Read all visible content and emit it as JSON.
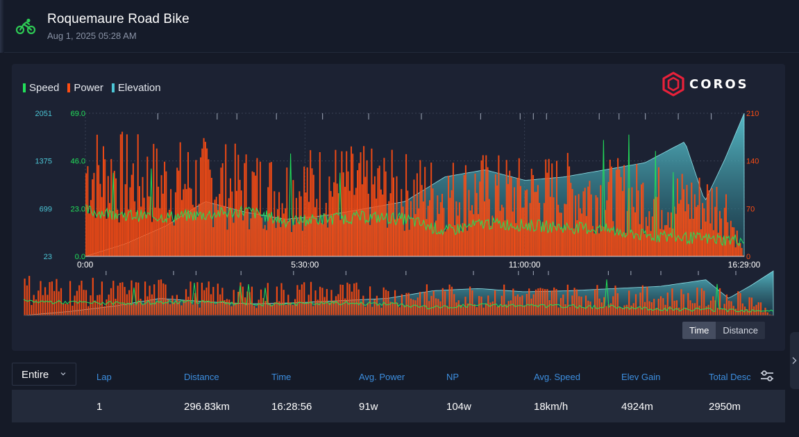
{
  "header": {
    "title": "Roquemaure Road Bike",
    "subtitle": "Aug 1, 2025 05:28 AM",
    "activity_icon": "road-bike-icon"
  },
  "chart": {
    "legend": [
      {
        "label": "Speed",
        "color": "#22e05a"
      },
      {
        "label": "Power",
        "color": "#ff4d12"
      },
      {
        "label": "Elevation",
        "color": "#4cc6d6"
      }
    ],
    "brand": "COROS",
    "elevation_ticks": [
      "2051",
      "1375",
      "699",
      "23"
    ],
    "speed_ticks": [
      "69.0",
      "46.0",
      "23.0",
      "0.0"
    ],
    "power_ticks": [
      "210",
      "140",
      "70",
      "0"
    ],
    "x_ticks": [
      "0:00",
      "5:30:00",
      "11:00:00",
      "16:29:00"
    ],
    "toggle": {
      "time": "Time",
      "distance": "Distance",
      "selected": "Time"
    }
  },
  "chart_data": {
    "type": "line",
    "x_unit": "elapsed time",
    "xlim": [
      "0:00",
      "16:29:00"
    ],
    "series": [
      {
        "name": "Speed",
        "axis": "left-inner",
        "ylim": [
          0,
          69
        ],
        "color": "#22e05a",
        "x": [
          "0:00",
          "1:00:00",
          "2:00:00",
          "3:00:00",
          "4:00:00",
          "5:00:00",
          "6:00:00",
          "7:00:00",
          "8:00:00",
          "9:00:00",
          "10:00:00",
          "11:00:00",
          "12:00:00",
          "13:00:00",
          "14:00:00",
          "15:00:00",
          "16:00:00",
          "16:29:00"
        ],
        "values": [
          22,
          20,
          19,
          20,
          22,
          17,
          18,
          19,
          18,
          12,
          16,
          15,
          14,
          13,
          10,
          9,
          8,
          8
        ]
      },
      {
        "name": "Power",
        "axis": "right",
        "ylim": [
          0,
          210
        ],
        "color": "#ff4d12",
        "x": [
          "0:00",
          "1:00:00",
          "2:00:00",
          "3:00:00",
          "4:00:00",
          "5:00:00",
          "6:00:00",
          "7:00:00",
          "8:00:00",
          "9:00:00",
          "10:00:00",
          "11:00:00",
          "12:00:00",
          "13:00:00",
          "14:00:00",
          "15:00:00",
          "16:00:00",
          "16:29:00"
        ],
        "values": [
          130,
          120,
          110,
          115,
          105,
          100,
          110,
          105,
          100,
          95,
          100,
          95,
          100,
          95,
          90,
          85,
          80,
          0
        ]
      },
      {
        "name": "Elevation",
        "axis": "left-outer",
        "ylim": [
          23,
          2051
        ],
        "color": "#4cc6d6",
        "x": [
          "0:00",
          "1:00:00",
          "2:00:00",
          "3:00:00",
          "4:00:00",
          "5:00:00",
          "6:00:00",
          "7:00:00",
          "8:00:00",
          "9:00:00",
          "10:00:00",
          "11:00:00",
          "12:00:00",
          "13:00:00",
          "14:00:00",
          "15:00:00",
          "15:30:00",
          "16:00:00",
          "16:29:00"
        ],
        "values": [
          23,
          200,
          450,
          800,
          650,
          550,
          600,
          700,
          800,
          1150,
          1250,
          1100,
          1150,
          1250,
          1350,
          1650,
          800,
          1400,
          2051
        ]
      }
    ]
  },
  "laps": {
    "select_label": "Entire",
    "columns": [
      "Lap",
      "Distance",
      "Time",
      "Avg. Power",
      "NP",
      "Avg. Speed",
      "Elev Gain",
      "Total Desc"
    ],
    "rows": [
      {
        "lap": "1",
        "distance": "296.83km",
        "time": "16:28:56",
        "avg_power": "91w",
        "np": "104w",
        "avg_speed": "18km/h",
        "elev_gain": "4924m",
        "total_desc": "2950m"
      }
    ]
  }
}
